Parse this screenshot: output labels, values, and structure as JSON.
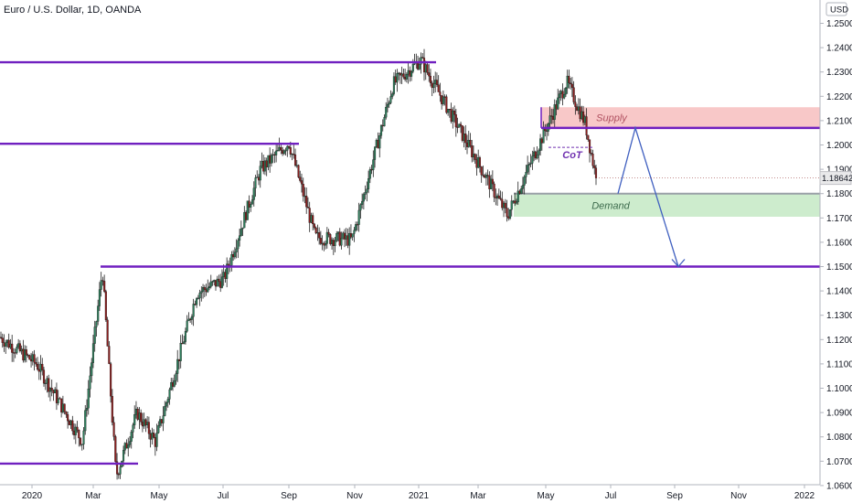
{
  "header": {
    "symbol_title": "Euro / U.S. Dollar, 1D, OANDA",
    "currency_label": "USD"
  },
  "price_label": "1.18642",
  "chart_data": {
    "type": "candlestick",
    "ylim": [
      1.058,
      1.257
    ],
    "y_ticks": [
      "1.25000",
      "1.24000",
      "1.23000",
      "1.22000",
      "1.21000",
      "1.20000",
      "1.19000",
      "1.18000",
      "1.17000",
      "1.16000",
      "1.15000",
      "1.14000",
      "1.13000",
      "1.12000",
      "1.11000",
      "1.10000",
      "1.09000",
      "1.08000",
      "1.07000",
      "1.06000"
    ],
    "x_ticks": [
      "2020",
      "Mar",
      "May",
      "Jul",
      "Sep",
      "Nov",
      "2021",
      "Mar",
      "May",
      "Jul",
      "Sep",
      "Nov",
      "2022"
    ],
    "last_price": 1.18642,
    "price_path": [
      [
        "2020",
        1.121
      ],
      [
        "Jan 2020 mid",
        1.11
      ],
      [
        "Feb 2020 low",
        1.078
      ],
      [
        "Mar 2020 high",
        1.149
      ],
      [
        "Mar 2020 low",
        1.064
      ],
      [
        "Apr 2020",
        1.09
      ],
      [
        "May 2020 low",
        1.078
      ],
      [
        "Jun 2020",
        1.139
      ],
      [
        "Jul 2020",
        1.145
      ],
      [
        "Aug 2020",
        1.19
      ],
      [
        "Sep 2020 high",
        1.201
      ],
      [
        "Sep 2020 low",
        1.162
      ],
      [
        "Nov 2020 low",
        1.161
      ],
      [
        "Dec 2020",
        1.225
      ],
      [
        "2021 high",
        1.235
      ],
      [
        "Mar 2021 low",
        1.171
      ],
      [
        "May 2021 high",
        1.226
      ],
      [
        "Jun 2021",
        1.209
      ],
      [
        "last",
        1.18642
      ]
    ],
    "annotations": [
      {
        "type": "horizontal_line",
        "value": 1.234,
        "color": "#7020c0"
      },
      {
        "type": "horizontal_line",
        "value": 1.2005,
        "color": "#7020c0"
      },
      {
        "type": "horizontal_line",
        "value": 1.15,
        "color": "#7020c0"
      },
      {
        "type": "horizontal_line",
        "value": 1.069,
        "color": "#7020c0"
      },
      {
        "type": "horizontal_line",
        "value": 1.207,
        "color": "#7020c0"
      },
      {
        "type": "zone",
        "label": "Supply",
        "from": 1.207,
        "to": 1.2155,
        "color": "#f8c8c8"
      },
      {
        "type": "zone",
        "label": "Demand",
        "from": 1.1705,
        "to": 1.18,
        "color": "#cdeccd"
      },
      {
        "type": "dashed_line",
        "label": "CoT",
        "value": 1.199,
        "color": "#7030b0"
      },
      {
        "type": "projection_path",
        "points": [
          [
            1.18
          ],
          [
            1.207
          ],
          [
            1.15
          ]
        ],
        "color": "#4060c0"
      }
    ],
    "colors": {
      "up": "#2e7d5b",
      "down": "#8a1f1f",
      "level": "#7020c0",
      "projection": "#4060c0"
    }
  }
}
